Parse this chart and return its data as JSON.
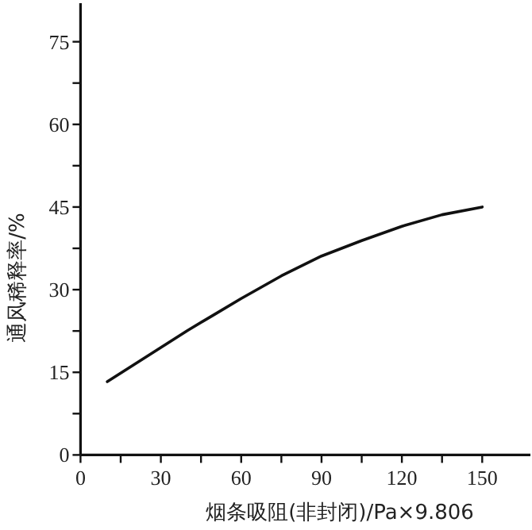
{
  "chart_data": {
    "type": "line",
    "xlabel": "烟条吸阻(非封闭)/Pa×9.806",
    "ylabel": "通风稀释率/%",
    "xlim": [
      0,
      168
    ],
    "ylim": [
      0,
      82
    ],
    "xticks": [
      0,
      {
        "value": 15,
        "label": null
      },
      30,
      {
        "value": 45,
        "label": null
      },
      60,
      {
        "value": 75,
        "label": null
      },
      90,
      {
        "value": 105,
        "label": null
      },
      120,
      {
        "value": 135,
        "label": null
      },
      150
    ],
    "yticks": [
      0,
      {
        "value": 7.5,
        "label": null
      },
      15,
      {
        "value": 22.5,
        "label": null
      },
      30,
      {
        "value": 37.5,
        "label": null
      },
      45,
      {
        "value": 52.5,
        "label": null
      },
      60,
      {
        "value": 67.5,
        "label": null
      },
      75
    ],
    "x": [
      10,
      20,
      30,
      40,
      50,
      60,
      75,
      90,
      105,
      120,
      135,
      150
    ],
    "series": [
      {
        "color": "#111111",
        "values": [
          13.3,
          16.4,
          19.5,
          22.6,
          25.5,
          28.4,
          32.5,
          36.1,
          38.9,
          41.5,
          43.6,
          45.0
        ]
      }
    ]
  }
}
